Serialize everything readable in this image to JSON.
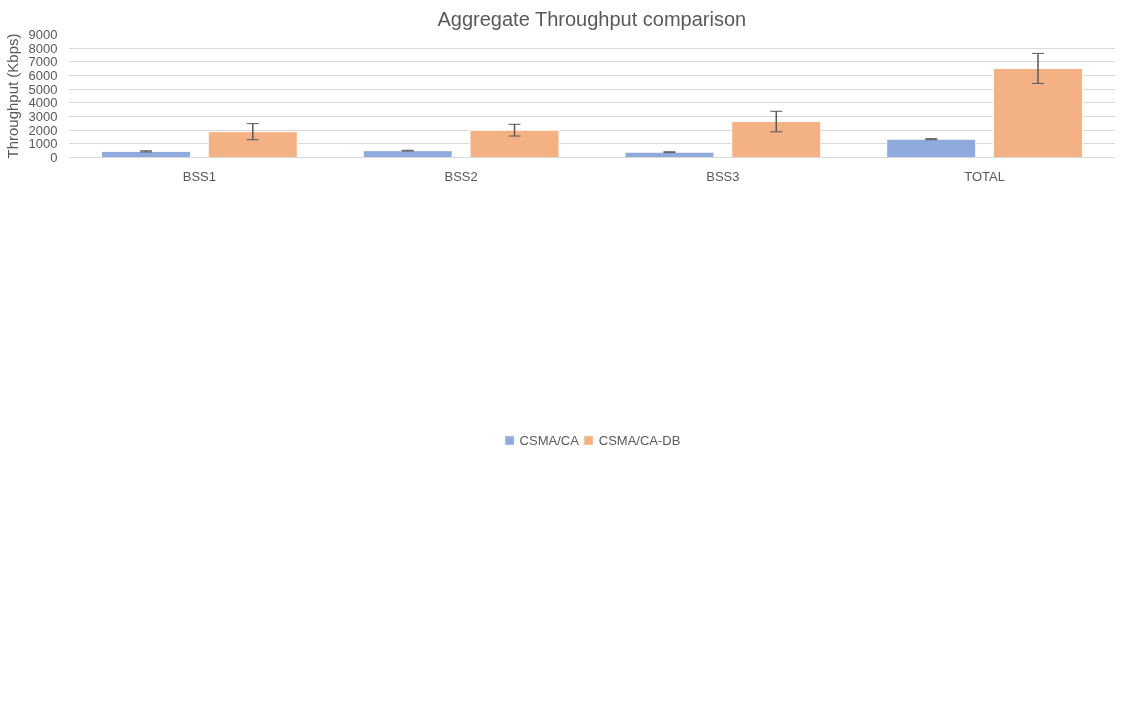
{
  "chart_data": {
    "type": "bar",
    "title": "Aggregate Throughput comparison",
    "ylabel": "Throughput (Kbps)",
    "categories": [
      "BSS1",
      "BSS2",
      "BSS3",
      "TOTAL"
    ],
    "series": [
      {
        "name": "CSMA/CA",
        "color": "#8faadc",
        "values": [
          450,
          500,
          390,
          1340
        ],
        "errors": [
          40,
          30,
          30,
          40
        ]
      },
      {
        "name": "CSMA/CA-DB",
        "color": "#f4b183",
        "values": [
          1890,
          2000,
          2630,
          6520
        ],
        "errors": [
          590,
          430,
          750,
          1100
        ]
      }
    ],
    "ylim": [
      0,
      9000
    ],
    "yticks": [
      0,
      1000,
      2000,
      3000,
      4000,
      5000,
      6000,
      7000,
      8000,
      9000
    ],
    "grid": "y",
    "legend": "bottom"
  }
}
